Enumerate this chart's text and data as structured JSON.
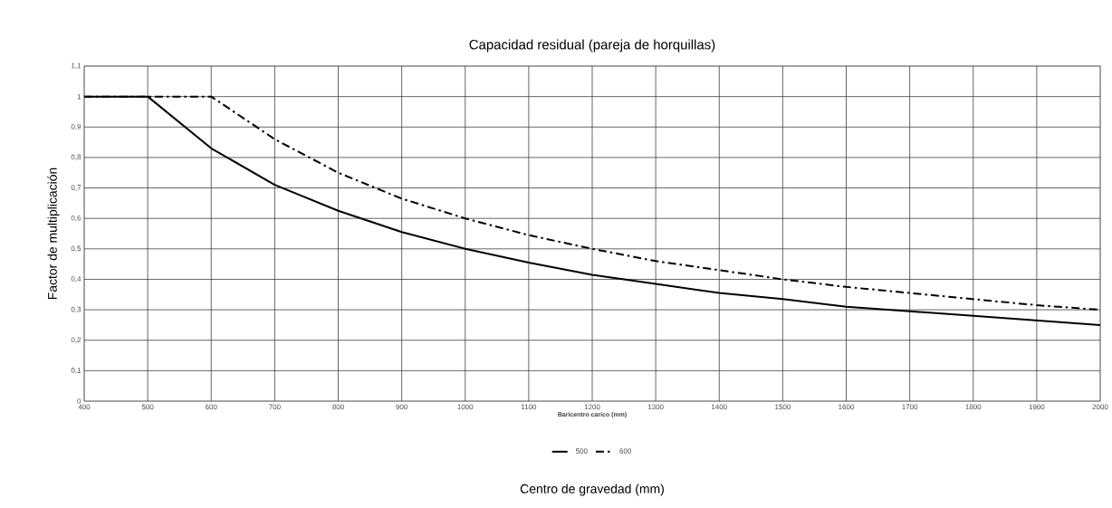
{
  "chart_data": {
    "type": "line",
    "title": "Capacidad residual (pareja de horquillas)",
    "xlabel": "Baricentro carico (mm)",
    "ylabel": "Factor de multiplicación",
    "annotations": [
      "Centro de gravedad (mm)"
    ],
    "x": [
      400,
      500,
      600,
      700,
      800,
      900,
      1000,
      1100,
      1200,
      1300,
      1400,
      1500,
      1600,
      1700,
      1800,
      1900,
      2000
    ],
    "series": [
      {
        "name": "500",
        "color": "#000000",
        "line_style": "solid",
        "values": [
          1,
          1,
          0.83,
          0.71,
          0.625,
          0.555,
          0.5,
          0.455,
          0.415,
          0.385,
          0.355,
          0.335,
          0.31,
          0.295,
          0.28,
          0.265,
          0.25
        ]
      },
      {
        "name": "600",
        "color": "#000000",
        "line_style": "dashed",
        "values": [
          1,
          1,
          1,
          0.86,
          0.75,
          0.665,
          0.6,
          0.545,
          0.5,
          0.46,
          0.43,
          0.4,
          0.375,
          0.355,
          0.335,
          0.315,
          0.3
        ]
      }
    ],
    "xlim": [
      400,
      2000
    ],
    "xticks": [
      400,
      500,
      600,
      700,
      800,
      900,
      1000,
      1100,
      1200,
      1300,
      1400,
      1500,
      1600,
      1700,
      1800,
      1900,
      2000
    ],
    "ylim": [
      0,
      1.1
    ],
    "yticks": [
      0,
      {
        "value": 0.1,
        "label": "0,1"
      },
      {
        "value": 0.2,
        "label": "0,2"
      },
      {
        "value": 0.3,
        "label": "0,3"
      },
      {
        "value": 0.4,
        "label": "0,4"
      },
      {
        "value": 0.5,
        "label": "0,5"
      },
      {
        "value": 0.6,
        "label": "0,6"
      },
      {
        "value": 0.7,
        "label": "0,7"
      },
      {
        "value": 0.8,
        "label": "0,8"
      },
      {
        "value": 0.9,
        "label": "0,9"
      },
      1,
      {
        "value": 1.1,
        "label": "1,1"
      }
    ],
    "grid": true,
    "legend": "bottom",
    "marker": "none"
  }
}
